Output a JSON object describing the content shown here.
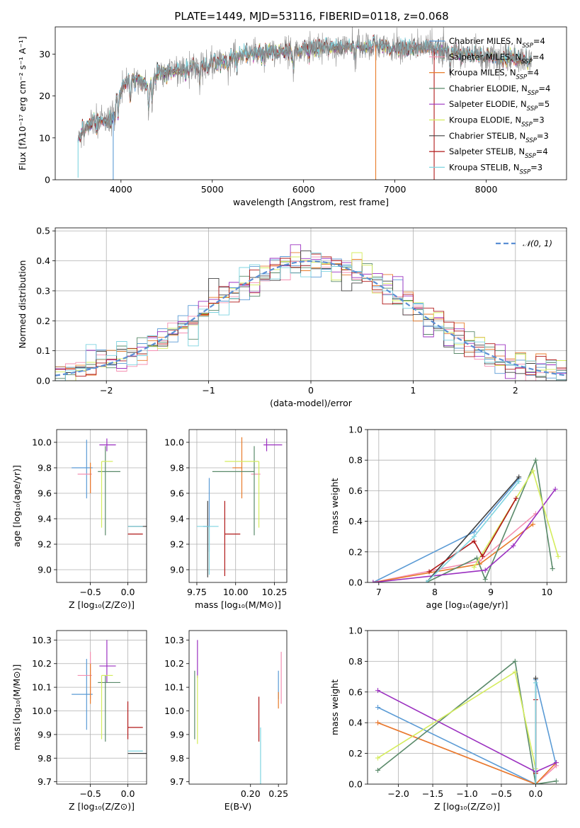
{
  "title": "PLATE=1449, MJD=53116, FIBERID=0118, z=0.068",
  "colors": {
    "Chabrier MILES": "#5b9bd5",
    "Salpeter MILES": "#f48fb1",
    "Kroupa MILES": "#e87b2a",
    "Chabrier ELODIE": "#5a8a6a",
    "Salpeter ELODIE": "#9b30c0",
    "Kroupa ELODIE": "#d4ec5c",
    "Chabrier STELIB": "#404040",
    "Salpeter STELIB": "#b01818",
    "Kroupa STELIB": "#7fd4e0",
    "data": "#888888",
    "gauss": "#5b8fd4"
  },
  "chart_data": [
    {
      "id": "spectrum",
      "type": "line",
      "xlabel": "wavelength [Angstrom, rest frame]",
      "ylabel": "Flux [fλ10⁻¹⁷ erg cm⁻² s⁻¹ A⁻¹]",
      "xlim": [
        3280,
        8880
      ],
      "ylim": [
        0,
        36.5
      ],
      "xticks": [
        "4000",
        "5000",
        "6000",
        "7000",
        "8000"
      ],
      "yticks": [
        "0",
        "10",
        "20",
        "30"
      ],
      "legend_position": "right",
      "legend": [
        {
          "label": "Chabrier MILES, N",
          "sub": "SSP",
          "suffix": "=4",
          "model": "Chabrier MILES"
        },
        {
          "label": "Salpeter MILES, N",
          "sub": "SSP",
          "suffix": "=4",
          "model": "Salpeter MILES"
        },
        {
          "label": "Kroupa MILES, N",
          "sub": "SSP",
          "suffix": "=4",
          "model": "Kroupa MILES"
        },
        {
          "label": "Chabrier ELODIE, N",
          "sub": "SSP",
          "suffix": "=4",
          "model": "Chabrier ELODIE"
        },
        {
          "label": "Salpeter ELODIE, N",
          "sub": "SSP",
          "suffix": "=5",
          "model": "Salpeter ELODIE"
        },
        {
          "label": "Kroupa ELODIE, N",
          "sub": "SSP",
          "suffix": "=3",
          "model": "Kroupa ELODIE"
        },
        {
          "label": "Chabrier STELIB, N",
          "sub": "SSP",
          "suffix": "=3",
          "model": "Chabrier STELIB"
        },
        {
          "label": "Salpeter STELIB, N",
          "sub": "SSP",
          "suffix": "=4",
          "model": "Salpeter STELIB"
        },
        {
          "label": "Kroupa STELIB, N",
          "sub": "SSP",
          "suffix": "=3",
          "model": "Kroupa STELIB"
        }
      ],
      "continuum": [
        [
          3530,
          10
        ],
        [
          3600,
          12
        ],
        [
          3700,
          13.5
        ],
        [
          3800,
          14
        ],
        [
          3900,
          14.5
        ],
        [
          3950,
          20
        ],
        [
          4050,
          23.5
        ],
        [
          4200,
          24
        ],
        [
          4300,
          22
        ],
        [
          4400,
          25.5
        ],
        [
          4600,
          26
        ],
        [
          4800,
          27
        ],
        [
          5000,
          27.5
        ],
        [
          5200,
          29
        ],
        [
          5400,
          30
        ],
        [
          5600,
          30.5
        ],
        [
          5800,
          30.5
        ],
        [
          6000,
          31
        ],
        [
          6200,
          31.5
        ],
        [
          6400,
          31.5
        ],
        [
          6600,
          32
        ],
        [
          6800,
          32
        ],
        [
          7000,
          31.5
        ],
        [
          7200,
          31.5
        ],
        [
          7400,
          31.5
        ],
        [
          7600,
          30.5
        ],
        [
          7800,
          30
        ],
        [
          8000,
          29.5
        ],
        [
          8200,
          29
        ],
        [
          8400,
          28.5
        ],
        [
          8500,
          28
        ]
      ],
      "absorption_features": [
        [
          3934,
          4
        ],
        [
          3969,
          5
        ],
        [
          4102,
          5
        ],
        [
          4304,
          6
        ],
        [
          4340,
          5
        ],
        [
          4861,
          4
        ],
        [
          5175,
          3
        ],
        [
          5270,
          2
        ],
        [
          5890,
          6
        ],
        [
          6563,
          2
        ],
        [
          7605,
          5
        ],
        [
          8542,
          3
        ],
        [
          8662,
          3
        ]
      ],
      "spikes": [
        [
          3530,
          0.5
        ],
        [
          3915,
          0
        ],
        [
          6790,
          0
        ],
        [
          7430,
          0
        ]
      ]
    },
    {
      "id": "residuals",
      "type": "histogram",
      "xlabel": "(data-model)/error",
      "ylabel": "Normed distribution",
      "xlim": [
        -2.5,
        2.5
      ],
      "ylim": [
        0,
        0.51
      ],
      "xticks": [
        "−2",
        "−1",
        "0",
        "1",
        "2"
      ],
      "yticks": [
        "0.0",
        "0.1",
        "0.2",
        "0.3",
        "0.4",
        "0.5"
      ],
      "grid": true,
      "bin_width": 0.1,
      "legend_position": "top-right",
      "legend_label": "𝒩(0, 1)"
    },
    {
      "id": "age_vs_Z",
      "type": "errorbar",
      "xlabel": "Z [log₁₀(Z/Z⊙)]",
      "ylabel": "age  [log₁₀(age/yr)]",
      "xlim": [
        -0.95,
        0.25
      ],
      "ylim": [
        8.9,
        10.1
      ],
      "xticks": [
        "−0.5",
        "0.0"
      ],
      "yticks": [
        "9.0",
        "9.2",
        "9.4",
        "9.6",
        "9.8",
        "10.0"
      ],
      "grid": true
    },
    {
      "id": "age_vs_mass",
      "type": "errorbar",
      "xlabel": "mass [log₁₀(M/M⊙)]",
      "ylabel": "",
      "xlim": [
        9.7,
        10.33
      ],
      "ylim": [
        8.9,
        10.1
      ],
      "xticks": [
        "9.75",
        "10.00",
        "10.25"
      ],
      "yticks": [
        "9.0",
        "9.2",
        "9.4",
        "9.6",
        "9.8",
        "10.0"
      ],
      "grid": true
    },
    {
      "id": "weight_vs_age",
      "type": "line",
      "xlabel": "age  [log₁₀(age/yr)]",
      "ylabel": "mass weight",
      "xlim": [
        6.8,
        10.35
      ],
      "ylim": [
        0,
        1.0
      ],
      "xticks": [
        "7",
        "8",
        "9",
        "10"
      ],
      "yticks": [
        "0.0",
        "0.2",
        "0.4",
        "0.6",
        "0.8",
        "1.0"
      ],
      "grid": true
    },
    {
      "id": "mass_vs_Z",
      "type": "errorbar",
      "xlabel": "Z [log₁₀(Z/Z⊙)]",
      "ylabel": "mass [log₁₀(M/M⊙)]",
      "xlim": [
        -0.95,
        0.25
      ],
      "ylim": [
        9.69,
        10.34
      ],
      "xticks": [
        "−0.5",
        "0.0"
      ],
      "yticks": [
        "9.7",
        "9.8",
        "9.9",
        "10.0",
        "10.1",
        "10.2",
        "10.3"
      ],
      "grid": true
    },
    {
      "id": "mass_vs_EBV",
      "type": "errorbar",
      "xlabel": "E(B-V)",
      "ylabel": "",
      "xlim": [
        0.09,
        0.265
      ],
      "ylim": [
        9.69,
        10.34
      ],
      "xticks": [
        "0.20",
        "0.25"
      ],
      "yticks": [
        "9.7",
        "9.8",
        "9.9",
        "10.0",
        "10.1",
        "10.2",
        "10.3"
      ],
      "grid": false
    },
    {
      "id": "weight_vs_Z",
      "type": "line",
      "xlabel": "Z [log₁₀(Z/Z⊙)]",
      "ylabel": "mass weight",
      "xlim": [
        -2.45,
        0.45
      ],
      "ylim": [
        0,
        1.0
      ],
      "xticks": [
        "−2.0",
        "−1.5",
        "−1.0",
        "−0.5",
        "0.0"
      ],
      "yticks": [
        "0.0",
        "0.2",
        "0.4",
        "0.6",
        "0.8",
        "1.0"
      ],
      "grid": true
    }
  ],
  "fits": [
    {
      "model": "Chabrier MILES",
      "age": [
        9.8,
        0.24,
        0.22
      ],
      "Z": [
        -0.55,
        0.2,
        0.08
      ],
      "mass": [
        10.07,
        0.15,
        0.13
      ],
      "mass_err": [
        0.15,
        0.15
      ],
      "ebv": 0.25,
      "ebv_err": [
        0.02,
        0.1
      ],
      "age_mass_x": [
        9.83,
        0.04,
        0.0
      ],
      "age_mass_y": [
        9.34,
        0.2,
        0.38
      ],
      "weight_age": [
        [
          6.9,
          0.0
        ],
        [
          8.7,
          0.33
        ],
        [
          9.5,
          0.68
        ]
      ],
      "weight_Z": [
        [
          -2.3,
          0.5
        ],
        [
          0.0,
          0.0
        ],
        [
          0.0,
          0.68
        ],
        [
          0.3,
          0.12
        ]
      ]
    },
    {
      "model": "Salpeter MILES",
      "age": [
        9.75,
        0.15,
        0.04
      ],
      "Z": [
        -0.5,
        0.17,
        0.02
      ],
      "mass": [
        10.15,
        0.08,
        0.1
      ],
      "mass_err": [
        0.1,
        0.1
      ],
      "ebv": 0.255,
      "ebv_err": [
        0.12,
        0.1
      ],
      "age_mass_x": [
        10.1,
        0.0,
        0.06
      ],
      "age_mass_y": [
        9.75,
        0.0,
        0.0
      ],
      "weight_age": [
        [
          6.9,
          0.0
        ],
        [
          8.8,
          0.14
        ],
        [
          9.8,
          0.45
        ]
      ],
      "weight_Z": [
        [
          -2.3,
          0.4
        ],
        [
          0.0,
          0.0
        ],
        [
          0.3,
          0.12
        ]
      ]
    },
    {
      "model": "Kroupa MILES",
      "age": [
        9.8,
        0.2,
        0.04
      ],
      "Z": [
        -0.5,
        0.0,
        0.0
      ],
      "mass": [
        10.06,
        0.03,
        0.14
      ],
      "mass_err": [
        0.03,
        0.14
      ],
      "ebv": 0.25,
      "ebv_err": [
        0.05,
        0.02
      ],
      "age_mass_x": [
        10.04,
        0.06,
        0.0
      ],
      "age_mass_y": [
        9.8,
        0.24,
        0.24
      ],
      "weight_age": [
        [
          6.9,
          0.0
        ],
        [
          8.8,
          0.12
        ],
        [
          9.75,
          0.38
        ]
      ],
      "weight_Z": [
        [
          -2.3,
          0.4
        ],
        [
          0.0,
          0.0
        ],
        [
          0.3,
          0.14
        ]
      ]
    },
    {
      "model": "Chabrier ELODIE",
      "age": [
        9.77,
        0.5,
        0.2
      ],
      "Z": [
        -0.3,
        0.1,
        0.2
      ],
      "mass": [
        10.12,
        0.25,
        0.03
      ],
      "mass_err": [
        0.25,
        0.03
      ],
      "ebv": 0.1,
      "ebv_err": [
        0.24,
        0.05
      ],
      "age_mass_x": [
        10.12,
        0.27,
        0.0
      ],
      "age_mass_y": [
        9.77,
        0.5,
        0.2
      ],
      "weight_age": [
        [
          7.85,
          0.0
        ],
        [
          8.75,
          0.16
        ],
        [
          8.9,
          0.02
        ],
        [
          9.8,
          0.8
        ],
        [
          10.1,
          0.09
        ]
      ],
      "weight_Z": [
        [
          -2.3,
          0.09
        ],
        [
          -0.3,
          0.8
        ],
        [
          0.0,
          0.0
        ],
        [
          0.3,
          0.02
        ]
      ]
    },
    {
      "model": "Salpeter ELODIE",
      "age": [
        9.98,
        0.05,
        0.05
      ],
      "Z": [
        -0.28,
        0.1,
        0.12
      ],
      "mass": [
        10.19,
        0.07,
        0.11
      ],
      "mass_err": [
        0.07,
        0.11
      ],
      "ebv": 0.105,
      "ebv_err": [
        0.05,
        0.11
      ],
      "age_mass_x": [
        10.2,
        0.02,
        0.1
      ],
      "age_mass_y": [
        9.98,
        0.05,
        0.05
      ],
      "weight_age": [
        [
          6.9,
          0.0
        ],
        [
          8.9,
          0.08
        ],
        [
          9.4,
          0.24
        ],
        [
          10.15,
          0.61
        ]
      ],
      "weight_Z": [
        [
          -2.3,
          0.61
        ],
        [
          0.0,
          0.08
        ],
        [
          0.3,
          0.14
        ]
      ]
    },
    {
      "model": "Kroupa ELODIE",
      "age": [
        9.85,
        0.52,
        0.0
      ],
      "Z": [
        -0.35,
        0.0,
        0.15
      ],
      "mass": [
        10.15,
        0.27,
        0.0
      ],
      "mass_err": [
        0.27,
        0.0
      ],
      "ebv": 0.105,
      "ebv_err": [
        0.29,
        0.0
      ],
      "age_mass_x": [
        10.15,
        0.22,
        0.0
      ],
      "age_mass_y": [
        9.85,
        0.52,
        0.0
      ],
      "weight_age": [
        [
          8.7,
          0.1
        ],
        [
          9.75,
          0.73
        ],
        [
          10.2,
          0.17
        ]
      ],
      "weight_Z": [
        [
          -2.3,
          0.17
        ],
        [
          -0.3,
          0.73
        ],
        [
          0.0,
          0.1
        ]
      ]
    },
    {
      "model": "Chabrier STELIB",
      "age": [
        9.34,
        0.0,
        0.0
      ],
      "Z": [
        0.0,
        0.0,
        0.25
      ],
      "mass": [
        9.82,
        0.0,
        0.05
      ],
      "mass_err": [
        0.0,
        0.0
      ],
      "ebv": 0.215,
      "ebv_err": [
        0.0,
        0.0
      ],
      "age_mass_x": [
        9.82,
        0.0,
        0.0
      ],
      "age_mass_y": [
        9.34,
        0.4,
        0.2
      ],
      "weight_age": [
        [
          7.85,
          0.0
        ],
        [
          9.5,
          0.69
        ]
      ],
      "weight_Z": [
        [
          0.0,
          0.0
        ],
        [
          0.0,
          0.69
        ]
      ]
    },
    {
      "model": "Salpeter STELIB",
      "age": [
        9.28,
        0.0,
        0.0
      ],
      "Z": [
        0.0,
        0.0,
        0.2
      ],
      "mass": [
        9.93,
        0.05,
        0.11
      ],
      "mass_err": [
        0.05,
        0.11
      ],
      "ebv": 0.215,
      "ebv_err": [
        0.06,
        0.13
      ],
      "age_mass_x": [
        9.93,
        0.0,
        0.1
      ],
      "age_mass_y": [
        9.28,
        0.33,
        0.26
      ],
      "weight_age": [
        [
          7.9,
          0.07
        ],
        [
          8.7,
          0.27
        ],
        [
          8.85,
          0.17
        ],
        [
          9.45,
          0.55
        ]
      ],
      "weight_Z": [
        [
          0.0,
          0.07
        ],
        [
          0.0,
          0.55
        ]
      ]
    },
    {
      "model": "Kroupa STELIB",
      "age": [
        9.34,
        0.0,
        0.0
      ],
      "Z": [
        0.0,
        0.0,
        0.2
      ],
      "mass": [
        9.83,
        0.0,
        0.0
      ],
      "mass_err": [
        0.0,
        0.0
      ],
      "ebv": 0.218,
      "ebv_err": [
        0.2,
        0.1
      ],
      "age_mass_x": [
        9.83,
        0.08,
        0.06
      ],
      "age_mass_y": [
        9.34,
        0.38,
        0.0
      ],
      "weight_age": [
        [
          7.85,
          0.0
        ],
        [
          8.7,
          0.3
        ],
        [
          9.5,
          0.66
        ]
      ],
      "weight_Z": [
        [
          0.0,
          0.0
        ],
        [
          0.0,
          0.66
        ]
      ]
    }
  ]
}
